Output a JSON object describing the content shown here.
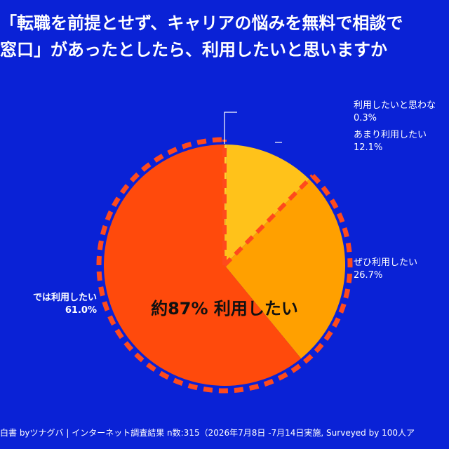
{
  "title_lines": [
    "「転職を前提とせず、キャリアの悩みを無料で相談で",
    "窓口」があったとしたら、利用したいと思いますか"
  ],
  "footer": "白書 byツナグバ | インターネット調査結果 n数:315（2026年7月8日 -7月14日実施, Surveyed by 100人ア",
  "highlight_label": "約87% 利用したい",
  "colors": {
    "background": "#0a22d6",
    "dashed_outline": "#ff4a1c"
  },
  "chart_data": {
    "type": "pie",
    "title": "",
    "slices": [
      {
        "label": "利用したいと思わな",
        "value": 0.3,
        "value_label": "0.3%",
        "color": "#ffcf33"
      },
      {
        "label": "あまり利用したい",
        "value": 12.1,
        "value_label": "12.1%",
        "color": "#ffc21a"
      },
      {
        "label": "ぜひ利用したい",
        "value": 26.7,
        "value_label": "26.7%",
        "color": "#ffa000"
      },
      {
        "label": "では利用したい",
        "value": 61.0,
        "value_label": "61.0%",
        "color": "#ff4a0c"
      }
    ],
    "highlight_group_total": 87.7,
    "start_angle": "12 o'clock",
    "direction": "clockwise"
  }
}
